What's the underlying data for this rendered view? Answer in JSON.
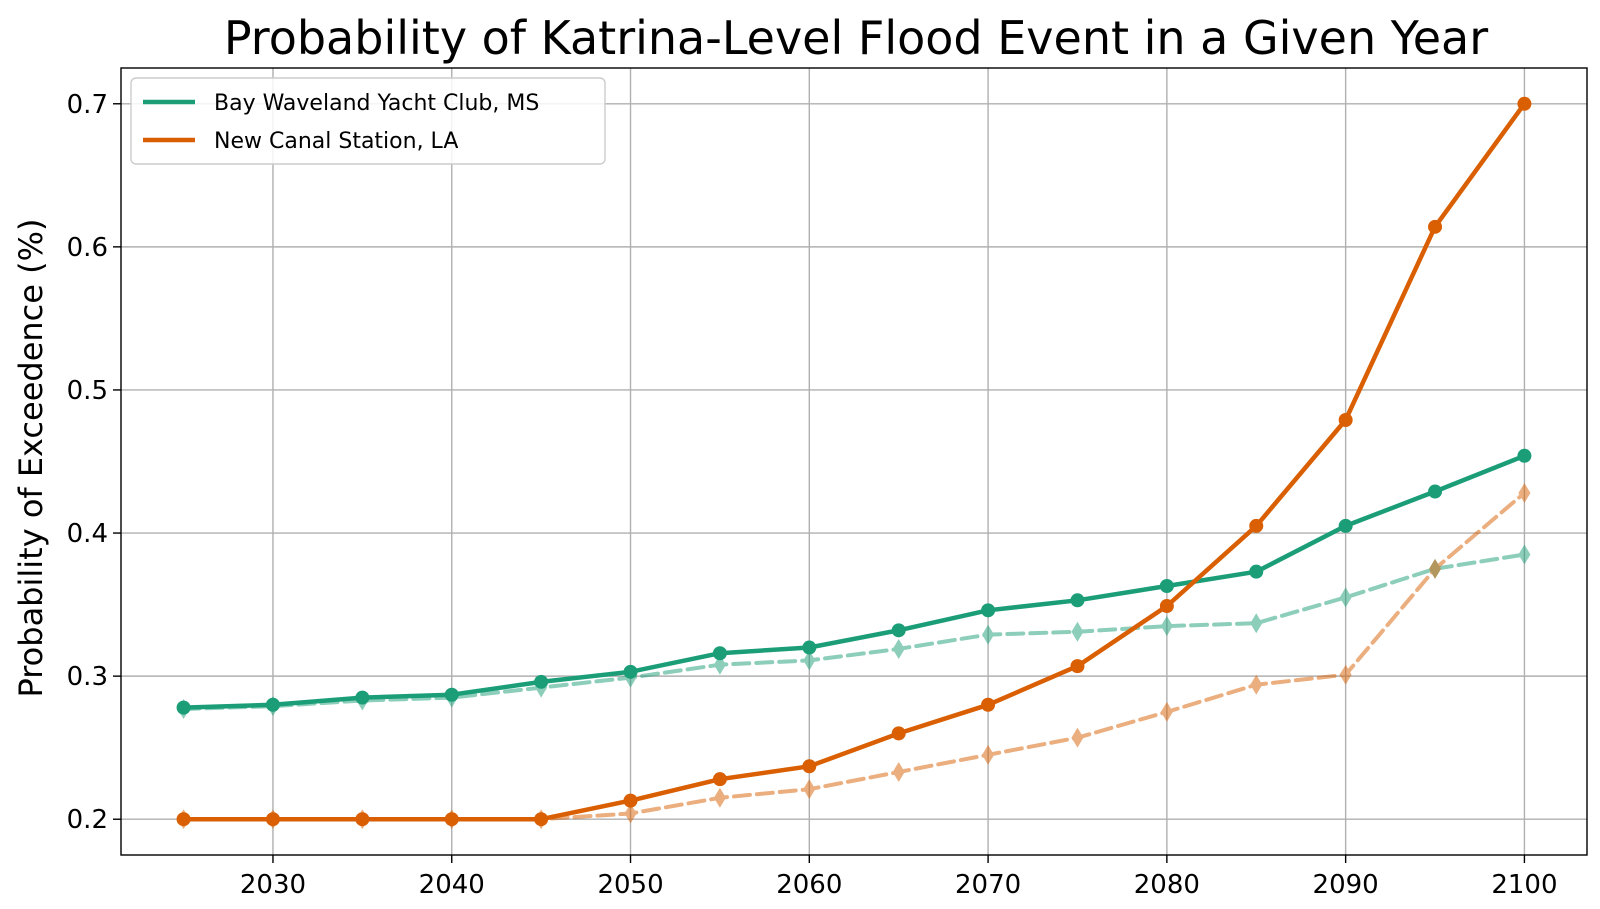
{
  "chart_data": {
    "type": "line",
    "title": "Probability of Katrina-Level Flood Event in a Given Year",
    "xlabel": "",
    "ylabel": "Probability of Exceedence (%)",
    "xlim": [
      2021.5,
      2103.5
    ],
    "ylim": [
      0.175,
      0.725
    ],
    "xticks": [
      2030,
      2040,
      2050,
      2060,
      2070,
      2080,
      2090,
      2100
    ],
    "xtick_labels": [
      "2030",
      "2040",
      "2050",
      "2060",
      "2070",
      "2080",
      "2090",
      "2100"
    ],
    "yticks": [
      0.2,
      0.3,
      0.4,
      0.5,
      0.6,
      0.7
    ],
    "ytick_labels": [
      "0.2",
      "0.3",
      "0.4",
      "0.5",
      "0.6",
      "0.7"
    ],
    "grid": true,
    "legend_position": "upper-left",
    "x": [
      2025,
      2030,
      2035,
      2040,
      2045,
      2050,
      2055,
      2060,
      2065,
      2070,
      2075,
      2080,
      2085,
      2090,
      2095,
      2100
    ],
    "series": [
      {
        "name": "Bay Waveland Yacht Club, MS",
        "color": "#1b9e77",
        "style": "solid",
        "marker": "circle",
        "in_legend": true,
        "values": [
          0.278,
          0.28,
          0.285,
          0.287,
          0.296,
          0.303,
          0.316,
          0.32,
          0.332,
          0.346,
          0.353,
          0.363,
          0.373,
          0.405,
          0.429,
          0.454
        ]
      },
      {
        "name": "New Canal Station, LA",
        "color": "#d95f02",
        "style": "solid",
        "marker": "circle",
        "in_legend": true,
        "values": [
          0.2,
          0.2,
          0.2,
          0.2,
          0.2,
          0.213,
          0.228,
          0.237,
          0.26,
          0.28,
          0.307,
          0.349,
          0.405,
          0.479,
          0.614,
          0.7
        ]
      },
      {
        "color": "#1b9e77",
        "style": "dashed",
        "marker": "diamond",
        "in_legend": false,
        "values": [
          0.277,
          0.279,
          0.283,
          0.285,
          0.292,
          0.299,
          0.308,
          0.311,
          0.319,
          0.329,
          0.331,
          0.335,
          0.337,
          0.355,
          0.375,
          0.385
        ]
      },
      {
        "color": "#d95f02",
        "style": "dashed",
        "marker": "diamond",
        "in_legend": false,
        "values": [
          0.2,
          0.2,
          0.2,
          0.2,
          0.2,
          0.204,
          0.215,
          0.221,
          0.233,
          0.245,
          0.257,
          0.275,
          0.294,
          0.301,
          0.375,
          0.428
        ]
      }
    ]
  }
}
